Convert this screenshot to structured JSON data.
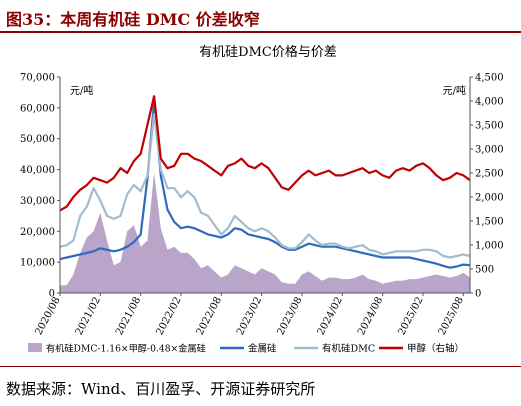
{
  "figure": {
    "label": "图35：",
    "title": "本周有机硅 DMC 价差收窄",
    "source": "数据来源：Wind、百川盈孚、开源证券研究所"
  },
  "chart_data": {
    "type": "line",
    "title": "有机硅DMC价格与价差",
    "y_left_unit": "元/吨",
    "y_right_unit": "元/吨",
    "y_left_ticks": [
      "0",
      "10,000",
      "20,000",
      "30,000",
      "40,000",
      "50,000",
      "60,000",
      "70,000"
    ],
    "y_right_ticks": [
      "0",
      "500",
      "1,000",
      "1,500",
      "2,000",
      "2,500",
      "3,000",
      "3,500",
      "4,000",
      "4,500"
    ],
    "ylim_left": [
      0,
      70000
    ],
    "ylim_right": [
      0,
      4500
    ],
    "x_ticks": [
      "2020/08",
      "2021/02",
      "2021/08",
      "2022/02",
      "2022/08",
      "2023/02",
      "2023/08",
      "2024/02",
      "2024/08",
      "2025/02",
      "2025/08"
    ],
    "x_range": [
      "2020-08",
      "2025-09"
    ],
    "legend_position": "bottom",
    "series": [
      {
        "name": "有机硅DMC-1.16×甲醇-0.48×金属硅",
        "axis": "left",
        "style": "area",
        "color": "#b9a5c9",
        "points": [
          [
            "2020-08",
            2500
          ],
          [
            "2020-09",
            2500
          ],
          [
            "2020-10",
            6000
          ],
          [
            "2020-11",
            13000
          ],
          [
            "2020-12",
            18000
          ],
          [
            "2021-01",
            20000
          ],
          [
            "2021-02",
            26000
          ],
          [
            "2021-03",
            17000
          ],
          [
            "2021-04",
            9000
          ],
          [
            "2021-05",
            10000
          ],
          [
            "2021-06",
            20000
          ],
          [
            "2021-07",
            22000
          ],
          [
            "2021-08",
            15000
          ],
          [
            "2021-09",
            17000
          ],
          [
            "2021-10",
            39000
          ],
          [
            "2021-11",
            21000
          ],
          [
            "2021-12",
            14000
          ],
          [
            "2022-01",
            15000
          ],
          [
            "2022-02",
            13000
          ],
          [
            "2022-03",
            13000
          ],
          [
            "2022-04",
            11000
          ],
          [
            "2022-05",
            8000
          ],
          [
            "2022-06",
            9000
          ],
          [
            "2022-07",
            7000
          ],
          [
            "2022-08",
            5000
          ],
          [
            "2022-09",
            6000
          ],
          [
            "2022-10",
            9000
          ],
          [
            "2022-11",
            8000
          ],
          [
            "2022-12",
            7000
          ],
          [
            "2023-01",
            6000
          ],
          [
            "2023-02",
            8000
          ],
          [
            "2023-03",
            7000
          ],
          [
            "2023-04",
            6000
          ],
          [
            "2023-05",
            3500
          ],
          [
            "2023-06",
            3000
          ],
          [
            "2023-07",
            3000
          ],
          [
            "2023-08",
            6000
          ],
          [
            "2023-09",
            7000
          ],
          [
            "2023-10",
            5500
          ],
          [
            "2023-11",
            4000
          ],
          [
            "2023-12",
            5000
          ],
          [
            "2024-01",
            5000
          ],
          [
            "2024-02",
            4500
          ],
          [
            "2024-03",
            4500
          ],
          [
            "2024-04",
            5000
          ],
          [
            "2024-05",
            6000
          ],
          [
            "2024-06",
            4500
          ],
          [
            "2024-07",
            4000
          ],
          [
            "2024-08",
            3000
          ],
          [
            "2024-09",
            3500
          ],
          [
            "2024-10",
            4000
          ],
          [
            "2024-11",
            4000
          ],
          [
            "2024-12",
            4500
          ],
          [
            "2025-01",
            4500
          ],
          [
            "2025-02",
            5000
          ],
          [
            "2025-03",
            5500
          ],
          [
            "2025-04",
            6000
          ],
          [
            "2025-05",
            5500
          ],
          [
            "2025-06",
            5000
          ],
          [
            "2025-07",
            5500
          ],
          [
            "2025-08",
            6500
          ],
          [
            "2025-09",
            5000
          ]
        ]
      },
      {
        "name": "金属硅",
        "axis": "left",
        "style": "line",
        "color": "#2e6bbf",
        "points": [
          [
            "2020-08",
            11000
          ],
          [
            "2020-09",
            11500
          ],
          [
            "2020-10",
            12000
          ],
          [
            "2020-11",
            12500
          ],
          [
            "2020-12",
            13000
          ],
          [
            "2021-01",
            13500
          ],
          [
            "2021-02",
            14500
          ],
          [
            "2021-03",
            14000
          ],
          [
            "2021-04",
            13500
          ],
          [
            "2021-05",
            14000
          ],
          [
            "2021-06",
            15000
          ],
          [
            "2021-07",
            16500
          ],
          [
            "2021-08",
            19000
          ],
          [
            "2021-09",
            37000
          ],
          [
            "2021-10",
            62000
          ],
          [
            "2021-11",
            38000
          ],
          [
            "2021-12",
            27000
          ],
          [
            "2022-01",
            23000
          ],
          [
            "2022-02",
            21000
          ],
          [
            "2022-03",
            21500
          ],
          [
            "2022-04",
            21000
          ],
          [
            "2022-05",
            20000
          ],
          [
            "2022-06",
            19000
          ],
          [
            "2022-07",
            18500
          ],
          [
            "2022-08",
            18000
          ],
          [
            "2022-09",
            19000
          ],
          [
            "2022-10",
            21000
          ],
          [
            "2022-11",
            20500
          ],
          [
            "2022-12",
            19000
          ],
          [
            "2023-01",
            18500
          ],
          [
            "2023-02",
            18000
          ],
          [
            "2023-03",
            17500
          ],
          [
            "2023-04",
            16500
          ],
          [
            "2023-05",
            15000
          ],
          [
            "2023-06",
            14000
          ],
          [
            "2023-07",
            14000
          ],
          [
            "2023-08",
            15000
          ],
          [
            "2023-09",
            16000
          ],
          [
            "2023-10",
            15500
          ],
          [
            "2023-11",
            15000
          ],
          [
            "2023-12",
            15000
          ],
          [
            "2024-01",
            15000
          ],
          [
            "2024-02",
            14500
          ],
          [
            "2024-03",
            14000
          ],
          [
            "2024-04",
            13500
          ],
          [
            "2024-05",
            13000
          ],
          [
            "2024-06",
            12500
          ],
          [
            "2024-07",
            12000
          ],
          [
            "2024-08",
            11500
          ],
          [
            "2024-09",
            11500
          ],
          [
            "2024-10",
            11500
          ],
          [
            "2024-11",
            11500
          ],
          [
            "2024-12",
            11500
          ],
          [
            "2025-01",
            11000
          ],
          [
            "2025-02",
            10500
          ],
          [
            "2025-03",
            10000
          ],
          [
            "2025-04",
            9500
          ],
          [
            "2025-05",
            8800
          ],
          [
            "2025-06",
            8200
          ],
          [
            "2025-07",
            8600
          ],
          [
            "2025-08",
            9200
          ],
          [
            "2025-09",
            9000
          ]
        ]
      },
      {
        "name": "有机硅DMC",
        "axis": "left",
        "style": "line",
        "color": "#a3bccd",
        "points": [
          [
            "2020-08",
            15000
          ],
          [
            "2020-09",
            15500
          ],
          [
            "2020-10",
            17000
          ],
          [
            "2020-11",
            25000
          ],
          [
            "2020-12",
            28000
          ],
          [
            "2021-01",
            34000
          ],
          [
            "2021-02",
            30000
          ],
          [
            "2021-03",
            25000
          ],
          [
            "2021-04",
            24000
          ],
          [
            "2021-05",
            25000
          ],
          [
            "2021-06",
            32000
          ],
          [
            "2021-07",
            35000
          ],
          [
            "2021-08",
            33000
          ],
          [
            "2021-09",
            38000
          ],
          [
            "2021-10",
            58000
          ],
          [
            "2021-11",
            40000
          ],
          [
            "2021-12",
            34000
          ],
          [
            "2022-01",
            34000
          ],
          [
            "2022-02",
            31000
          ],
          [
            "2022-03",
            33000
          ],
          [
            "2022-04",
            31000
          ],
          [
            "2022-05",
            26000
          ],
          [
            "2022-06",
            25000
          ],
          [
            "2022-07",
            22000
          ],
          [
            "2022-08",
            19000
          ],
          [
            "2022-09",
            21000
          ],
          [
            "2022-10",
            25000
          ],
          [
            "2022-11",
            23000
          ],
          [
            "2022-12",
            21000
          ],
          [
            "2023-01",
            20000
          ],
          [
            "2023-02",
            21000
          ],
          [
            "2023-03",
            20000
          ],
          [
            "2023-04",
            18000
          ],
          [
            "2023-05",
            15500
          ],
          [
            "2023-06",
            14500
          ],
          [
            "2023-07",
            14500
          ],
          [
            "2023-08",
            16500
          ],
          [
            "2023-09",
            19000
          ],
          [
            "2023-10",
            17000
          ],
          [
            "2023-11",
            15500
          ],
          [
            "2023-12",
            16000
          ],
          [
            "2024-01",
            16000
          ],
          [
            "2024-02",
            15000
          ],
          [
            "2024-03",
            14500
          ],
          [
            "2024-04",
            15000
          ],
          [
            "2024-05",
            15500
          ],
          [
            "2024-06",
            14000
          ],
          [
            "2024-07",
            13500
          ],
          [
            "2024-08",
            12500
          ],
          [
            "2024-09",
            13000
          ],
          [
            "2024-10",
            13500
          ],
          [
            "2024-11",
            13500
          ],
          [
            "2024-12",
            13500
          ],
          [
            "2025-01",
            13500
          ],
          [
            "2025-02",
            14000
          ],
          [
            "2025-03",
            14000
          ],
          [
            "2025-04",
            13500
          ],
          [
            "2025-05",
            12000
          ],
          [
            "2025-06",
            11500
          ],
          [
            "2025-07",
            12000
          ],
          [
            "2025-08",
            12500
          ],
          [
            "2025-09",
            12000
          ]
        ]
      },
      {
        "name": "甲醇（右轴）",
        "axis": "right",
        "style": "line",
        "color": "#c00000",
        "points": [
          [
            "2020-08",
            1720
          ],
          [
            "2020-09",
            1800
          ],
          [
            "2020-10",
            2000
          ],
          [
            "2020-11",
            2150
          ],
          [
            "2020-12",
            2250
          ],
          [
            "2021-01",
            2400
          ],
          [
            "2021-02",
            2350
          ],
          [
            "2021-03",
            2300
          ],
          [
            "2021-04",
            2400
          ],
          [
            "2021-05",
            2600
          ],
          [
            "2021-06",
            2500
          ],
          [
            "2021-07",
            2750
          ],
          [
            "2021-08",
            2900
          ],
          [
            "2021-09",
            3500
          ],
          [
            "2021-10",
            4100
          ],
          [
            "2021-11",
            2800
          ],
          [
            "2021-12",
            2600
          ],
          [
            "2022-01",
            2650
          ],
          [
            "2022-02",
            2900
          ],
          [
            "2022-03",
            2900
          ],
          [
            "2022-04",
            2800
          ],
          [
            "2022-05",
            2750
          ],
          [
            "2022-06",
            2650
          ],
          [
            "2022-07",
            2550
          ],
          [
            "2022-08",
            2450
          ],
          [
            "2022-09",
            2650
          ],
          [
            "2022-10",
            2700
          ],
          [
            "2022-11",
            2800
          ],
          [
            "2022-12",
            2650
          ],
          [
            "2023-01",
            2600
          ],
          [
            "2023-02",
            2700
          ],
          [
            "2023-03",
            2600
          ],
          [
            "2023-04",
            2400
          ],
          [
            "2023-05",
            2200
          ],
          [
            "2023-06",
            2150
          ],
          [
            "2023-07",
            2300
          ],
          [
            "2023-08",
            2450
          ],
          [
            "2023-09",
            2550
          ],
          [
            "2023-10",
            2450
          ],
          [
            "2023-11",
            2500
          ],
          [
            "2023-12",
            2550
          ],
          [
            "2024-01",
            2450
          ],
          [
            "2024-02",
            2450
          ],
          [
            "2024-03",
            2500
          ],
          [
            "2024-04",
            2550
          ],
          [
            "2024-05",
            2600
          ],
          [
            "2024-06",
            2500
          ],
          [
            "2024-07",
            2550
          ],
          [
            "2024-08",
            2450
          ],
          [
            "2024-09",
            2400
          ],
          [
            "2024-10",
            2550
          ],
          [
            "2024-11",
            2600
          ],
          [
            "2024-12",
            2550
          ],
          [
            "2025-01",
            2650
          ],
          [
            "2025-02",
            2700
          ],
          [
            "2025-03",
            2600
          ],
          [
            "2025-04",
            2450
          ],
          [
            "2025-05",
            2350
          ],
          [
            "2025-06",
            2400
          ],
          [
            "2025-07",
            2500
          ],
          [
            "2025-08",
            2450
          ],
          [
            "2025-09",
            2350
          ]
        ]
      }
    ],
    "legend": [
      {
        "name": "有机硅DMC-1.16×甲醇-0.48×金属硅",
        "swatch": "box",
        "color": "#b9a5c9"
      },
      {
        "name": "金属硅",
        "swatch": "line",
        "color": "#2e6bbf"
      },
      {
        "name": "有机硅DMC",
        "swatch": "line",
        "color": "#a3bccd"
      },
      {
        "name": "甲醇（右轴）",
        "swatch": "line",
        "color": "#c00000"
      }
    ]
  }
}
